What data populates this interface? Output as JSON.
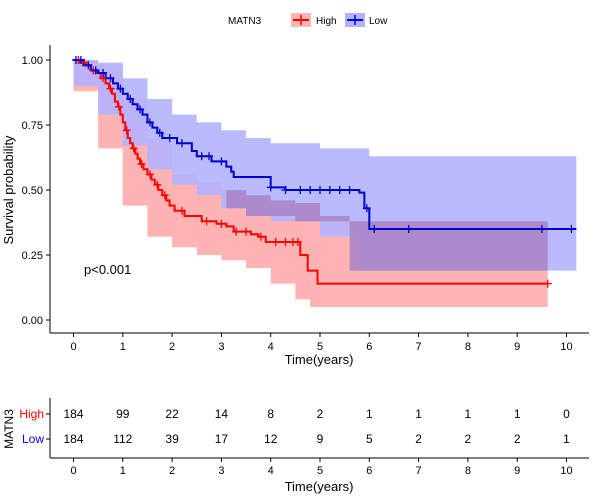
{
  "legend": {
    "title": "MATN3",
    "items": [
      {
        "label": "High",
        "color": "#ff0000"
      },
      {
        "label": "Low",
        "color": "#0000ff"
      }
    ]
  },
  "colors": {
    "high_line": "#ff0000",
    "low_line": "#0000cc",
    "high_band": "#ffb3b3",
    "low_band": "#b3b3ff",
    "overlap_band": "#a983c4"
  },
  "chart_data": [
    {
      "type": "line",
      "subtype": "kaplan-meier",
      "title": "",
      "xlabel": "Time(years)",
      "ylabel": "Survival probability",
      "xlim": [
        0,
        10.2
      ],
      "ylim": [
        0,
        1
      ],
      "x_ticks": [
        0,
        1,
        2,
        3,
        4,
        5,
        6,
        7,
        8,
        9,
        10
      ],
      "y_ticks": [
        "0.00",
        "0.25",
        "0.50",
        "0.75",
        "1.00"
      ],
      "annotation": "p<0.001",
      "grid": false,
      "legend_position": "top",
      "series": [
        {
          "name": "High",
          "color": "#ff0000",
          "steps": [
            [
              0,
              1.0
            ],
            [
              0.12,
              0.99
            ],
            [
              0.25,
              0.98
            ],
            [
              0.35,
              0.96
            ],
            [
              0.45,
              0.95
            ],
            [
              0.55,
              0.93
            ],
            [
              0.65,
              0.91
            ],
            [
              0.72,
              0.89
            ],
            [
              0.78,
              0.87
            ],
            [
              0.84,
              0.84
            ],
            [
              0.9,
              0.82
            ],
            [
              0.95,
              0.79
            ],
            [
              1.0,
              0.76
            ],
            [
              1.05,
              0.73
            ],
            [
              1.1,
              0.7
            ],
            [
              1.15,
              0.68
            ],
            [
              1.2,
              0.66
            ],
            [
              1.25,
              0.64
            ],
            [
              1.3,
              0.62
            ],
            [
              1.35,
              0.6
            ],
            [
              1.42,
              0.58
            ],
            [
              1.5,
              0.56
            ],
            [
              1.58,
              0.54
            ],
            [
              1.65,
              0.52
            ],
            [
              1.72,
              0.5
            ],
            [
              1.8,
              0.48
            ],
            [
              1.88,
              0.46
            ],
            [
              1.95,
              0.44
            ],
            [
              2.05,
              0.42
            ],
            [
              2.25,
              0.4
            ],
            [
              2.6,
              0.38
            ],
            [
              2.9,
              0.37
            ],
            [
              3.1,
              0.36
            ],
            [
              3.25,
              0.34
            ],
            [
              3.6,
              0.33
            ],
            [
              3.75,
              0.32
            ],
            [
              3.9,
              0.3
            ],
            [
              4.6,
              0.25
            ],
            [
              4.75,
              0.19
            ],
            [
              4.95,
              0.14
            ],
            [
              9.62,
              0.14
            ]
          ],
          "censor_x": [
            0.1,
            0.22,
            0.4,
            0.6,
            0.75,
            0.92,
            1.08,
            1.22,
            1.38,
            1.55,
            1.7,
            1.85,
            2.2,
            2.7,
            3.0,
            3.3,
            3.5,
            3.8,
            4.1,
            4.3,
            4.45,
            4.55,
            9.62
          ],
          "ci_upper": [
            [
              0,
              1.0
            ],
            [
              0.5,
              0.98
            ],
            [
              1.0,
              0.85
            ],
            [
              1.5,
              0.7
            ],
            [
              2.0,
              0.56
            ],
            [
              2.5,
              0.53
            ],
            [
              3.0,
              0.5
            ],
            [
              3.5,
              0.48
            ],
            [
              4.0,
              0.46
            ],
            [
              4.5,
              0.45
            ],
            [
              5.0,
              0.4
            ],
            [
              5.6,
              0.38
            ],
            [
              9.62,
              0.38
            ]
          ],
          "ci_lower": [
            [
              0,
              0.97
            ],
            [
              0.5,
              0.88
            ],
            [
              1.0,
              0.66
            ],
            [
              1.5,
              0.44
            ],
            [
              2.0,
              0.32
            ],
            [
              2.5,
              0.28
            ],
            [
              3.0,
              0.25
            ],
            [
              3.5,
              0.23
            ],
            [
              4.0,
              0.2
            ],
            [
              4.5,
              0.14
            ],
            [
              4.8,
              0.08
            ],
            [
              5.0,
              0.05
            ],
            [
              9.62,
              0.05
            ]
          ],
          "at_risk": [
            184,
            99,
            22,
            14,
            8,
            2,
            1,
            1,
            1,
            1,
            0
          ]
        },
        {
          "name": "Low",
          "color": "#0000cc",
          "steps": [
            [
              0,
              1.0
            ],
            [
              0.2,
              0.98
            ],
            [
              0.35,
              0.96
            ],
            [
              0.5,
              0.95
            ],
            [
              0.65,
              0.93
            ],
            [
              0.8,
              0.91
            ],
            [
              0.9,
              0.89
            ],
            [
              1.0,
              0.87
            ],
            [
              1.1,
              0.85
            ],
            [
              1.2,
              0.83
            ],
            [
              1.3,
              0.81
            ],
            [
              1.4,
              0.79
            ],
            [
              1.5,
              0.76
            ],
            [
              1.6,
              0.74
            ],
            [
              1.7,
              0.72
            ],
            [
              1.8,
              0.7
            ],
            [
              2.1,
              0.68
            ],
            [
              2.4,
              0.65
            ],
            [
              2.5,
              0.63
            ],
            [
              2.8,
              0.61
            ],
            [
              3.1,
              0.59
            ],
            [
              3.2,
              0.57
            ],
            [
              3.25,
              0.55
            ],
            [
              4.0,
              0.51
            ],
            [
              4.3,
              0.5
            ],
            [
              5.8,
              0.49
            ],
            [
              5.9,
              0.43
            ],
            [
              6.0,
              0.35
            ],
            [
              10.2,
              0.35
            ]
          ],
          "censor_x": [
            0.05,
            0.15,
            0.3,
            0.45,
            0.6,
            0.75,
            0.95,
            1.15,
            1.35,
            1.55,
            1.75,
            1.95,
            2.2,
            2.6,
            2.75,
            3.0,
            4.0,
            4.3,
            4.6,
            4.8,
            5.0,
            5.2,
            5.4,
            5.6,
            5.95,
            6.1,
            6.8,
            9.5,
            10.1
          ],
          "ci_upper": [
            [
              0,
              1.0
            ],
            [
              0.5,
              0.99
            ],
            [
              1.0,
              0.93
            ],
            [
              1.5,
              0.85
            ],
            [
              2.0,
              0.79
            ],
            [
              2.5,
              0.76
            ],
            [
              3.0,
              0.73
            ],
            [
              3.5,
              0.7
            ],
            [
              4.0,
              0.68
            ],
            [
              5.0,
              0.66
            ],
            [
              6.0,
              0.63
            ],
            [
              10.2,
              0.63
            ]
          ],
          "ci_lower": [
            [
              0,
              0.97
            ],
            [
              0.5,
              0.9
            ],
            [
              1.0,
              0.79
            ],
            [
              1.5,
              0.67
            ],
            [
              2.0,
              0.58
            ],
            [
              2.5,
              0.52
            ],
            [
              3.0,
              0.48
            ],
            [
              3.5,
              0.43
            ],
            [
              4.0,
              0.4
            ],
            [
              5.0,
              0.38
            ],
            [
              5.8,
              0.32
            ],
            [
              6.0,
              0.19
            ],
            [
              10.2,
              0.19
            ]
          ],
          "at_risk": [
            184,
            112,
            39,
            17,
            12,
            9,
            5,
            2,
            2,
            2,
            1
          ]
        }
      ]
    },
    {
      "type": "table",
      "subtype": "number-at-risk",
      "xlabel": "Time(years)",
      "ylabel": "MATN3",
      "x_ticks": [
        0,
        1,
        2,
        3,
        4,
        5,
        6,
        7,
        8,
        9,
        10
      ],
      "rows": [
        {
          "name": "High",
          "color": "#ff0000",
          "values": [
            184,
            99,
            22,
            14,
            8,
            2,
            1,
            1,
            1,
            1,
            0
          ]
        },
        {
          "name": "Low",
          "color": "#0000ff",
          "values": [
            184,
            112,
            39,
            17,
            12,
            9,
            5,
            2,
            2,
            2,
            1
          ]
        }
      ]
    }
  ]
}
